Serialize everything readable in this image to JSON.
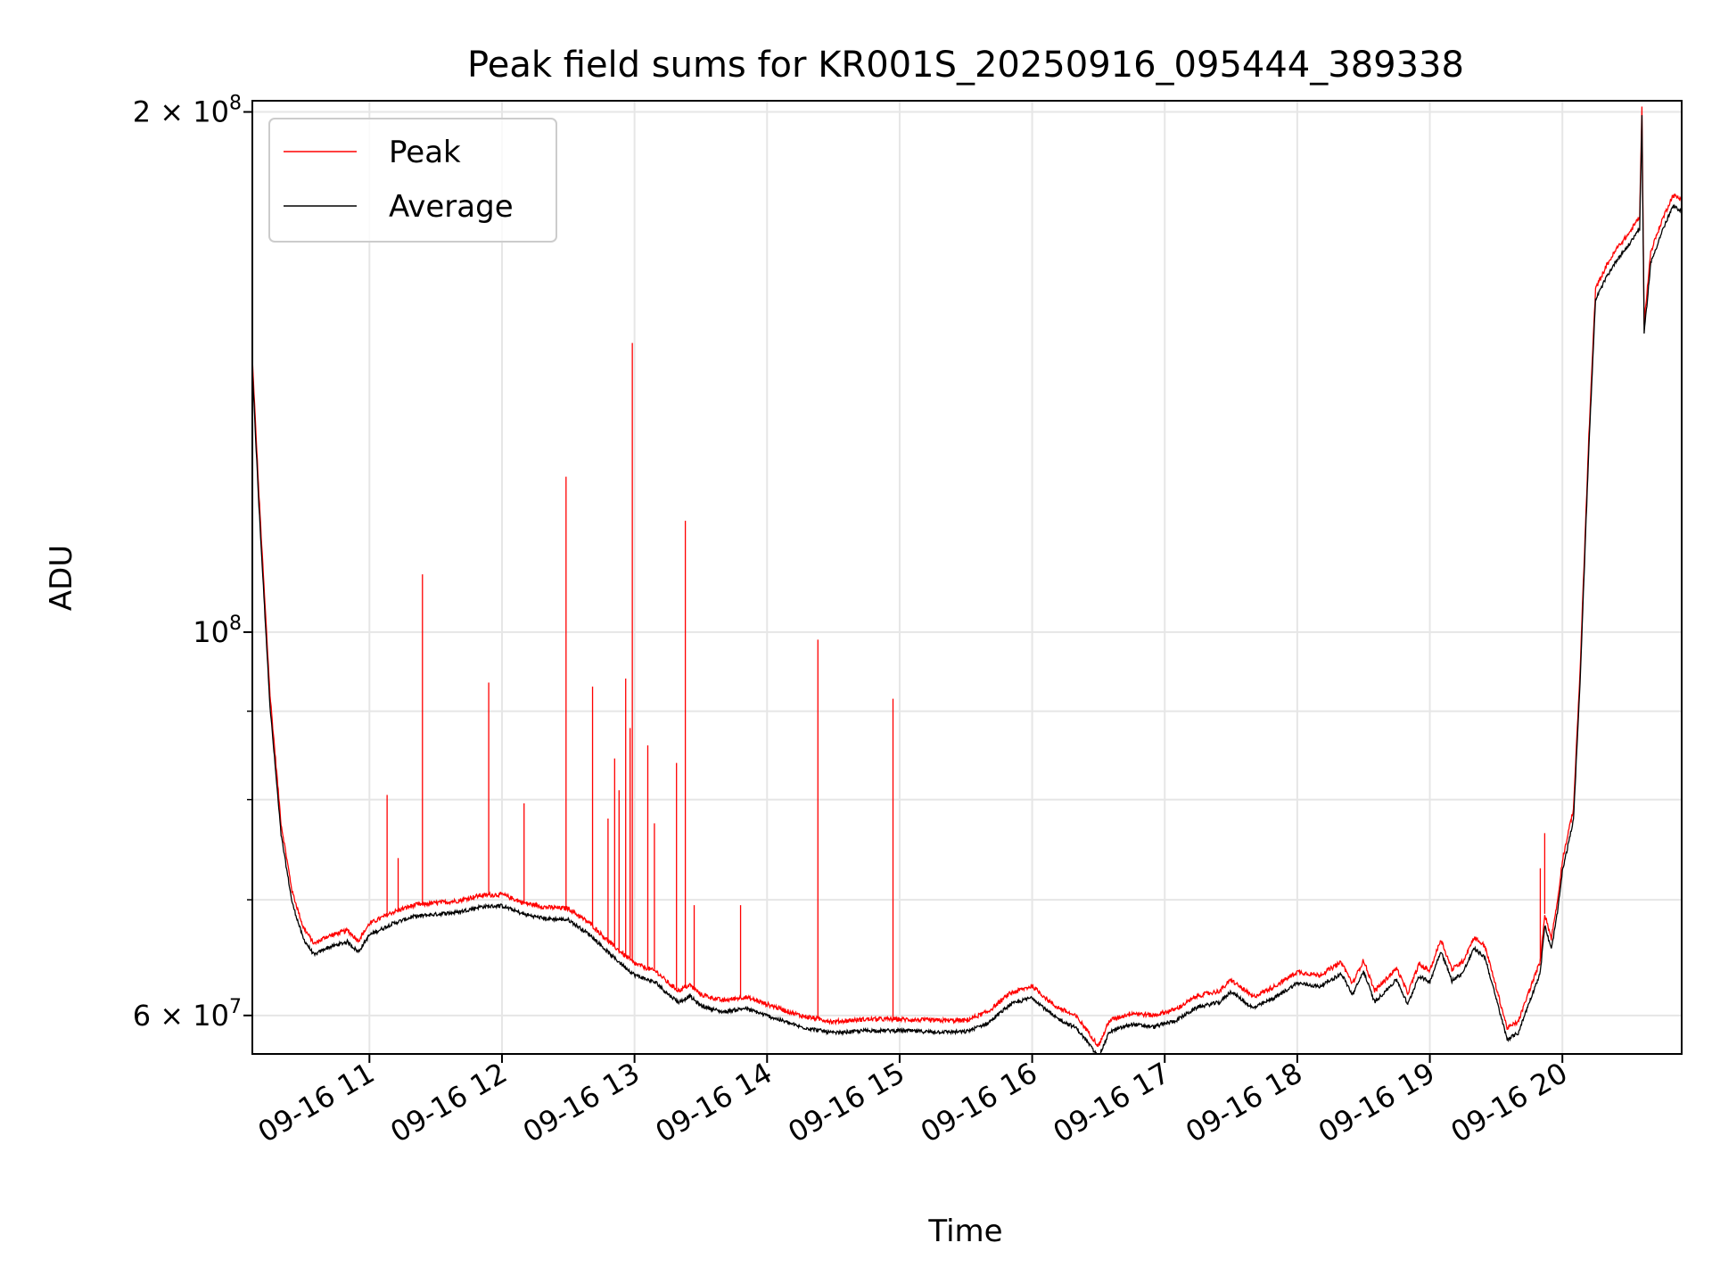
{
  "chart_data": {
    "type": "line",
    "title": "Peak field sums for KR001S_20250916_095444_389338",
    "xlabel": "Time",
    "ylabel": "ADU",
    "yscale": "log",
    "grid": true,
    "legend_position": "upper-left",
    "xlim": [
      "2025-09-16 10:07",
      "2025-09-16 20:54"
    ],
    "ylim": [
      57000000,
      203000000
    ],
    "x_ticks": [
      {
        "value": "2025-09-16 11:00",
        "label": "09-16 11"
      },
      {
        "value": "2025-09-16 12:00",
        "label": "09-16 12"
      },
      {
        "value": "2025-09-16 13:00",
        "label": "09-16 13"
      },
      {
        "value": "2025-09-16 14:00",
        "label": "09-16 14"
      },
      {
        "value": "2025-09-16 15:00",
        "label": "09-16 15"
      },
      {
        "value": "2025-09-16 16:00",
        "label": "09-16 16"
      },
      {
        "value": "2025-09-16 17:00",
        "label": "09-16 17"
      },
      {
        "value": "2025-09-16 18:00",
        "label": "09-16 18"
      },
      {
        "value": "2025-09-16 19:00",
        "label": "09-16 19"
      },
      {
        "value": "2025-09-16 20:00",
        "label": "09-16 20"
      }
    ],
    "y_ticks": [
      {
        "value": 60000000,
        "base": "6 × 10",
        "exp": "7"
      },
      {
        "value": 100000000,
        "base": "10",
        "exp": "8"
      },
      {
        "value": 200000000,
        "base": "2 × 10",
        "exp": "8"
      }
    ],
    "y_minor_ticks": [
      70000000,
      80000000,
      90000000
    ],
    "series": [
      {
        "name": "Peak",
        "color": "#ff0000",
        "baseline_points": [
          [
            "2025-09-16 10:07",
            144000000
          ],
          [
            "2025-09-16 10:10",
            120000000
          ],
          [
            "2025-09-16 10:15",
            92000000
          ],
          [
            "2025-09-16 10:20",
            77500000
          ],
          [
            "2025-09-16 10:25",
            70800000
          ],
          [
            "2025-09-16 10:30",
            67500000
          ],
          [
            "2025-09-16 10:35",
            66000000
          ],
          [
            "2025-09-16 10:40",
            66600000
          ],
          [
            "2025-09-16 10:45",
            66900000
          ],
          [
            "2025-09-16 10:50",
            67200000
          ],
          [
            "2025-09-16 10:55",
            66300000
          ],
          [
            "2025-09-16 11:00",
            67800000
          ],
          [
            "2025-09-16 11:10",
            68800000
          ],
          [
            "2025-09-16 11:20",
            69500000
          ],
          [
            "2025-09-16 11:30",
            69700000
          ],
          [
            "2025-09-16 11:40",
            69900000
          ],
          [
            "2025-09-16 11:50",
            70400000
          ],
          [
            "2025-09-16 12:00",
            70500000
          ],
          [
            "2025-09-16 12:10",
            69700000
          ],
          [
            "2025-09-16 12:20",
            69300000
          ],
          [
            "2025-09-16 12:30",
            69200000
          ],
          [
            "2025-09-16 12:40",
            67800000
          ],
          [
            "2025-09-16 12:50",
            65900000
          ],
          [
            "2025-09-16 13:00",
            64300000
          ],
          [
            "2025-09-16 13:10",
            63600000
          ],
          [
            "2025-09-16 13:15",
            62700000
          ],
          [
            "2025-09-16 13:20",
            62000000
          ],
          [
            "2025-09-16 13:25",
            62500000
          ],
          [
            "2025-09-16 13:30",
            61700000
          ],
          [
            "2025-09-16 13:40",
            61200000
          ],
          [
            "2025-09-16 13:50",
            61500000
          ],
          [
            "2025-09-16 14:00",
            60900000
          ],
          [
            "2025-09-16 14:15",
            60000000
          ],
          [
            "2025-09-16 14:30",
            59500000
          ],
          [
            "2025-09-16 14:45",
            59700000
          ],
          [
            "2025-09-16 15:00",
            59700000
          ],
          [
            "2025-09-16 15:15",
            59600000
          ],
          [
            "2025-09-16 15:30",
            59600000
          ],
          [
            "2025-09-16 15:40",
            60300000
          ],
          [
            "2025-09-16 15:50",
            61800000
          ],
          [
            "2025-09-16 16:00",
            62400000
          ],
          [
            "2025-09-16 16:10",
            60800000
          ],
          [
            "2025-09-16 16:20",
            59900000
          ],
          [
            "2025-09-16 16:25",
            58800000
          ],
          [
            "2025-09-16 16:30",
            57600000
          ],
          [
            "2025-09-16 16:35",
            59600000
          ],
          [
            "2025-09-16 16:45",
            60200000
          ],
          [
            "2025-09-16 16:55",
            60000000
          ],
          [
            "2025-09-16 17:05",
            60500000
          ],
          [
            "2025-09-16 17:15",
            61600000
          ],
          [
            "2025-09-16 17:25",
            62000000
          ],
          [
            "2025-09-16 17:30",
            62900000
          ],
          [
            "2025-09-16 17:40",
            61500000
          ],
          [
            "2025-09-16 17:50",
            62400000
          ],
          [
            "2025-09-16 18:00",
            63600000
          ],
          [
            "2025-09-16 18:10",
            63300000
          ],
          [
            "2025-09-16 18:20",
            64400000
          ],
          [
            "2025-09-16 18:25",
            62600000
          ],
          [
            "2025-09-16 18:30",
            64600000
          ],
          [
            "2025-09-16 18:35",
            62000000
          ],
          [
            "2025-09-16 18:45",
            63900000
          ],
          [
            "2025-09-16 18:50",
            61800000
          ],
          [
            "2025-09-16 18:55",
            64200000
          ],
          [
            "2025-09-16 19:00",
            63700000
          ],
          [
            "2025-09-16 19:05",
            66400000
          ],
          [
            "2025-09-16 19:10",
            63800000
          ],
          [
            "2025-09-16 19:15",
            64500000
          ],
          [
            "2025-09-16 19:20",
            66600000
          ],
          [
            "2025-09-16 19:25",
            65800000
          ],
          [
            "2025-09-16 19:30",
            62300000
          ],
          [
            "2025-09-16 19:35",
            59000000
          ],
          [
            "2025-09-16 19:40",
            59500000
          ],
          [
            "2025-09-16 19:45",
            62000000
          ],
          [
            "2025-09-16 19:50",
            64500000
          ],
          [
            "2025-09-16 19:52",
            68700000
          ],
          [
            "2025-09-16 19:55",
            66500000
          ],
          [
            "2025-09-16 19:58",
            70200000
          ],
          [
            "2025-09-16 20:00",
            73800000
          ],
          [
            "2025-09-16 20:05",
            79000000
          ],
          [
            "2025-09-16 20:08",
            95000000
          ],
          [
            "2025-09-16 20:12",
            130000000
          ],
          [
            "2025-09-16 20:15",
            158000000
          ],
          [
            "2025-09-16 20:20",
            163000000
          ],
          [
            "2025-09-16 20:25",
            167000000
          ],
          [
            "2025-09-16 20:30",
            170000000
          ],
          [
            "2025-09-16 20:35",
            174000000
          ],
          [
            "2025-09-16 20:36",
            202000000
          ],
          [
            "2025-09-16 20:37",
            151000000
          ],
          [
            "2025-09-16 20:40",
            166000000
          ],
          [
            "2025-09-16 20:45",
            173000000
          ],
          [
            "2025-09-16 20:50",
            179000000
          ],
          [
            "2025-09-16 20:54",
            178000000
          ]
        ],
        "spikes": [
          [
            "2025-09-16 11:08",
            80500000
          ],
          [
            "2025-09-16 11:13",
            74000000
          ],
          [
            "2025-09-16 11:24",
            108000000
          ],
          [
            "2025-09-16 11:54",
            93500000
          ],
          [
            "2025-09-16 12:10",
            79600000
          ],
          [
            "2025-09-16 12:29",
            123000000
          ],
          [
            "2025-09-16 12:41",
            93000000
          ],
          [
            "2025-09-16 12:48",
            78000000
          ],
          [
            "2025-09-16 12:51",
            84500000
          ],
          [
            "2025-09-16 12:53",
            81000000
          ],
          [
            "2025-09-16 12:56",
            94000000
          ],
          [
            "2025-09-16 12:58",
            88000000
          ],
          [
            "2025-09-16 12:59",
            147000000
          ],
          [
            "2025-09-16 13:06",
            86000000
          ],
          [
            "2025-09-16 13:09",
            77500000
          ],
          [
            "2025-09-16 13:19",
            84000000
          ],
          [
            "2025-09-16 13:23",
            116000000
          ],
          [
            "2025-09-16 13:27",
            69500000
          ],
          [
            "2025-09-16 13:48",
            69500000
          ],
          [
            "2025-09-16 14:23",
            99000000
          ],
          [
            "2025-09-16 14:57",
            91500000
          ],
          [
            "2025-09-16 19:50",
            73000000
          ],
          [
            "2025-09-16 19:52",
            76500000
          ]
        ]
      },
      {
        "name": "Average",
        "color": "#000000",
        "note_offset_ratio": 0.985
      }
    ]
  }
}
